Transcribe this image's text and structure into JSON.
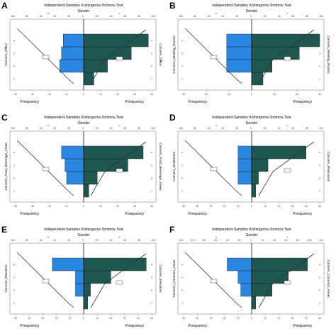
{
  "panels": [
    {
      "letter": "A",
      "title": "Independent-Samples Kolmogorov-Smirnov Test",
      "group_label": "Gender",
      "left_code": "0",
      "right_code": "1",
      "y_label": "Concern_Office",
      "y_label_right": "Concern_Office",
      "x_left_label": "Frequency",
      "x_right_label": "Frequency"
    },
    {
      "letter": "B",
      "title": "Independent-Samples Kolmogorov-Smirnov Test",
      "group_label": "Gender",
      "left_code": "0",
      "right_code": "1",
      "y_label": "Concern_Meeting_Rooms",
      "y_label_right": "Concern_Meeting_Rooms",
      "x_left_label": "Frequency",
      "x_right_label": "Frequency"
    },
    {
      "letter": "C",
      "title": "Independent-Samples Kolmogorov-Smirnov Test",
      "group_label": "Gender",
      "left_code": "0",
      "right_code": "1",
      "y_label": "Concern_Food_Beverage_Areas",
      "y_label_right": "Concern_Food_Beverage_Areas",
      "x_left_label": "Frequency",
      "x_right_label": "Frequency"
    },
    {
      "letter": "D",
      "title": "Independent-Samples Kolmogorov-Smirnov Test",
      "group_label": "Gender",
      "left_code": "0",
      "right_code": "1",
      "y_label": "Concern_Restrooms",
      "y_label_right": "Concern_Restrooms",
      "x_left_label": "Frequency",
      "x_right_label": "Frequency"
    },
    {
      "letter": "E",
      "title": "Independent-Samples Kolmogorov-Smirnov Test",
      "group_label": "Gender",
      "left_code": "0",
      "right_code": "1",
      "y_label": "Concern_Elevators",
      "y_label_right": "Concern_Elevators",
      "x_left_label": "Frequency",
      "x_right_label": "Frequency"
    },
    {
      "letter": "F",
      "title": "Independent-Samples Kolmogorov-Smirnov Test",
      "group_label": "Gender",
      "left_code": "0",
      "right_code": "1",
      "y_label": "Concern_Common_Areas",
      "y_label_right": "Concern_Common_Areas",
      "x_left_label": "Frequency",
      "x_right_label": "Frequency"
    }
  ],
  "colors": {
    "left_bar": "#2a86e0",
    "right_bar": "#1e5650",
    "line": "#333333",
    "frame": "#888888",
    "axis_text": "#444444"
  },
  "chart_data": [
    {
      "type": "bar",
      "orientation": "horizontal-mirrored",
      "panel": "A",
      "categories": [
        "1",
        "2",
        "3",
        "4"
      ],
      "series": [
        {
          "name": "0",
          "values": [
            0,
            14,
            13,
            12
          ]
        },
        {
          "name": "1",
          "values": [
            6,
            14,
            28,
            38
          ]
        }
      ],
      "xlim_left": [
        40,
        0
      ],
      "xlim_right": [
        0,
        40
      ],
      "ticks_left": [
        40,
        30,
        20,
        10,
        0
      ],
      "ticks_right": [
        0,
        10,
        20,
        30,
        40
      ],
      "top_ticks": [
        100,
        80,
        60,
        40,
        20,
        0,
        20,
        40,
        60,
        80,
        100
      ]
    },
    {
      "type": "bar",
      "orientation": "horizontal-mirrored",
      "panel": "B",
      "categories": [
        "1",
        "2",
        "3",
        "4"
      ],
      "series": [
        {
          "name": "0",
          "values": [
            0,
            11,
            11,
            11
          ]
        },
        {
          "name": "1",
          "values": [
            5,
            9,
            21,
            30
          ]
        }
      ],
      "xlim_left": [
        30,
        0
      ],
      "xlim_right": [
        0,
        30
      ],
      "ticks_left": [
        30,
        20,
        10,
        0
      ],
      "ticks_right": [
        0,
        10,
        20,
        30
      ],
      "top_ticks": [
        100,
        80,
        60,
        40,
        20,
        0,
        20,
        40,
        60,
        80,
        100
      ]
    },
    {
      "type": "bar",
      "orientation": "horizontal-mirrored",
      "panel": "C",
      "categories": [
        "1",
        "2",
        "3",
        "4"
      ],
      "series": [
        {
          "name": "0",
          "values": [
            0,
            10,
            11,
            13
          ]
        },
        {
          "name": "1",
          "values": [
            3,
            8,
            26,
            35
          ]
        }
      ],
      "xlim_left": [
        40,
        0
      ],
      "xlim_right": [
        0,
        40
      ],
      "ticks_left": [
        40,
        30,
        20,
        10,
        0
      ],
      "ticks_right": [
        0,
        10,
        20,
        30,
        40
      ],
      "top_ticks": [
        100,
        80,
        60,
        40,
        20,
        0,
        20,
        40,
        60,
        80,
        100
      ]
    },
    {
      "type": "bar",
      "orientation": "horizontal-mirrored",
      "panel": "D",
      "categories": [
        "1",
        "2",
        "3",
        "4"
      ],
      "series": [
        {
          "name": "0",
          "values": [
            0,
            10,
            10,
            10
          ]
        },
        {
          "name": "1",
          "values": [
            3,
            5,
            12,
            40
          ]
        }
      ],
      "xlim_left": [
        50,
        0
      ],
      "xlim_right": [
        0,
        50
      ],
      "ticks_left": [
        50,
        40,
        30,
        20,
        10,
        0
      ],
      "ticks_right": [
        0,
        10,
        20,
        30,
        40,
        50
      ],
      "top_ticks": [
        100,
        80,
        60,
        40,
        20,
        0,
        20,
        40,
        60,
        80,
        100
      ]
    },
    {
      "type": "bar",
      "orientation": "horizontal-mirrored",
      "panel": "E",
      "categories": [
        "1",
        "2",
        "3",
        "4"
      ],
      "series": [
        {
          "name": "0",
          "values": [
            0,
            6,
            6,
            23
          ]
        },
        {
          "name": "1",
          "values": [
            3,
            5,
            20,
            46
          ]
        }
      ],
      "xlim_left": [
        50,
        0
      ],
      "xlim_right": [
        0,
        50
      ],
      "ticks_left": [
        50,
        40,
        30,
        20,
        10,
        0
      ],
      "ticks_right": [
        0,
        10,
        20,
        30,
        40,
        50
      ],
      "top_ticks": [
        100,
        80,
        60,
        40,
        20,
        0,
        20,
        40,
        60,
        80,
        100
      ]
    },
    {
      "type": "bar",
      "orientation": "horizontal-mirrored",
      "panel": "F",
      "categories": [
        "1",
        "2",
        "3",
        "4"
      ],
      "series": [
        {
          "name": "0",
          "values": [
            0,
            8,
            10,
            18
          ]
        },
        {
          "name": "1",
          "values": [
            3,
            15,
            27,
            41
          ]
        }
      ],
      "xlim_left": [
        50,
        0
      ],
      "xlim_right": [
        0,
        50
      ],
      "ticks_left": [
        50,
        40,
        30,
        20,
        10,
        0
      ],
      "ticks_right": [
        0,
        10,
        20,
        30,
        40,
        50
      ],
      "top_ticks": [
        120,
        100,
        80,
        60,
        40,
        20,
        0,
        20,
        40,
        60,
        80,
        100,
        120
      ]
    }
  ]
}
